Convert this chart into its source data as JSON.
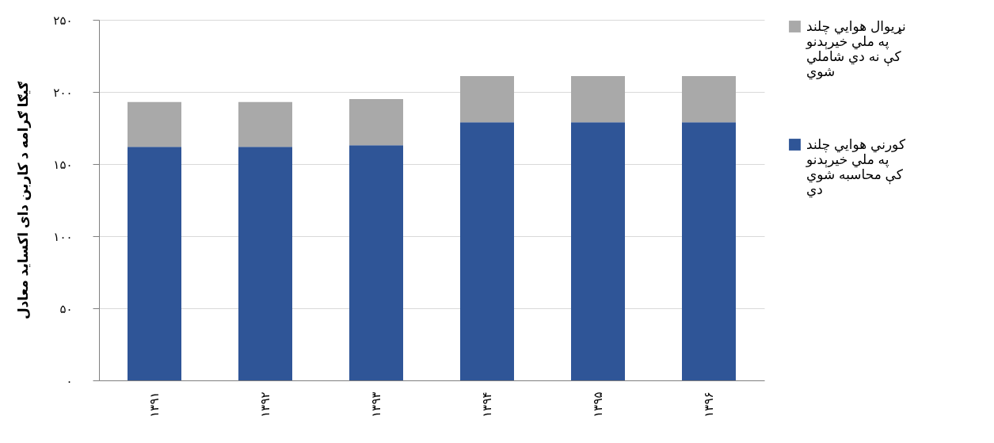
{
  "chart_data": {
    "type": "bar",
    "stacked": true,
    "ylabel": "ګیګا ګرامه د کاربن دای اکساید معادل",
    "categories": [
      "۱۳۹۱",
      "۱۳۹۲",
      "۱۳۹۳",
      "۱۳۹۴",
      "۱۳۹۵",
      "۱۳۹۶"
    ],
    "series": [
      {
        "name": "کورني هوايي چلند",
        "color": "#2f5597",
        "values": [
          162,
          162,
          163,
          179,
          179,
          179
        ]
      },
      {
        "name": "نړیوال هوايي چلند",
        "color": "#a9a9a9",
        "values": [
          31,
          31,
          32,
          32,
          32,
          32
        ]
      }
    ],
    "ylim": [
      0,
      250
    ],
    "yticks": [
      {
        "value": 0,
        "label": "۰"
      },
      {
        "value": 50,
        "label": "۵۰"
      },
      {
        "value": 100,
        "label": "۱۰۰"
      },
      {
        "value": 150,
        "label": "۱۵۰"
      },
      {
        "value": 200,
        "label": "۲۰۰"
      },
      {
        "value": 250,
        "label": "۲۵۰"
      }
    ],
    "annotations": [
      "په ملي خیرېدنو\nکې نه دي شاملي\nشوي",
      "په ملي خیرېدنو\nکې محاسبه شوي\nدي"
    ],
    "grid": "y",
    "legend": "right"
  }
}
